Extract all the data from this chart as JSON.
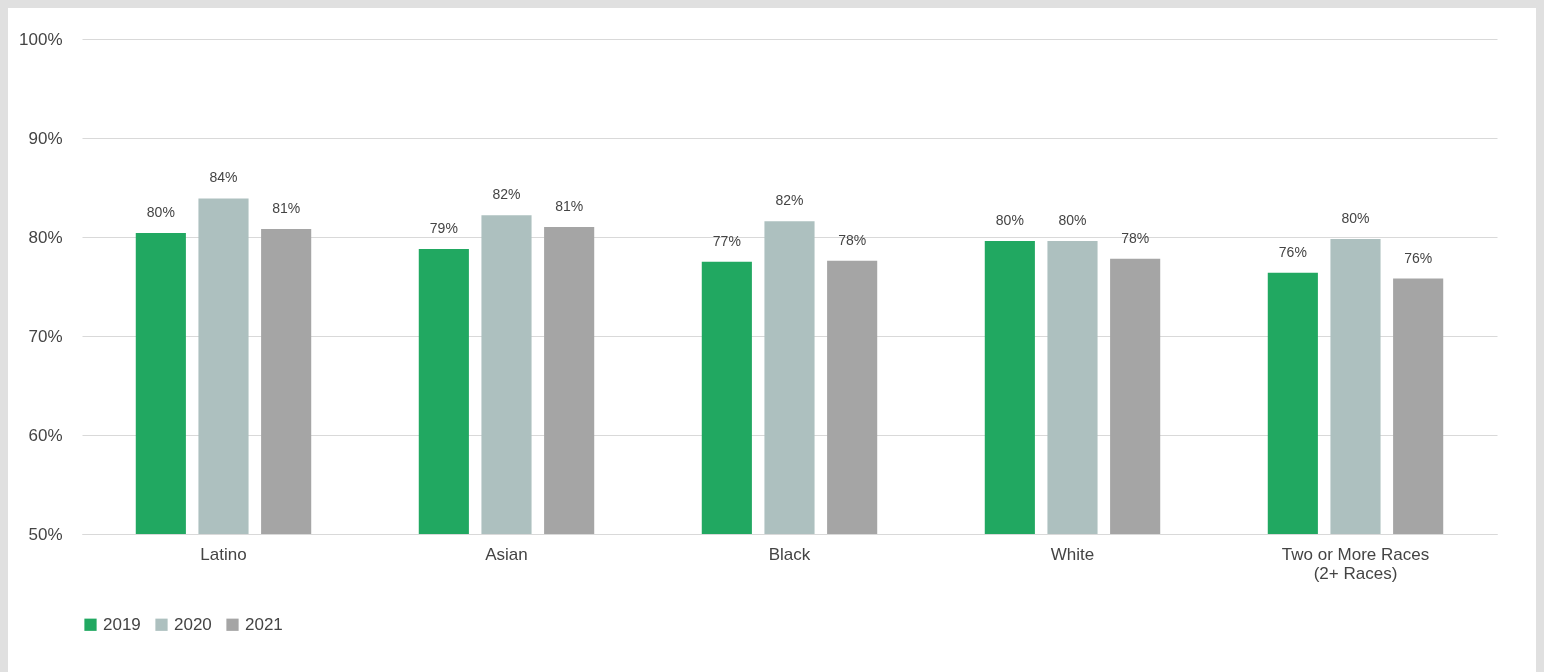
{
  "chart_data": {
    "type": "bar",
    "categories": [
      "Latino",
      "Asian",
      "Black",
      "White",
      "Two or More Races\n(2+ Races)"
    ],
    "series": [
      {
        "name": "2019",
        "color": "#21a861",
        "values": [
          80.4,
          78.8,
          77.5,
          79.6,
          76.4
        ],
        "value_labels": [
          "80%",
          "79%",
          "77%",
          "80%",
          "76%"
        ]
      },
      {
        "name": "2020",
        "color": "#adc0bf",
        "values": [
          83.9,
          82.2,
          81.6,
          79.6,
          79.8
        ],
        "value_labels": [
          "84%",
          "82%",
          "82%",
          "80%",
          "80%"
        ]
      },
      {
        "name": "2021",
        "color": "#a5a5a5",
        "values": [
          80.8,
          81.0,
          77.6,
          77.8,
          75.8
        ],
        "value_labels": [
          "81%",
          "81%",
          "78%",
          "78%",
          "76%"
        ]
      }
    ],
    "ylim": [
      50,
      100
    ],
    "yticks": [
      {
        "value": 50,
        "label": "50%"
      },
      {
        "value": 60,
        "label": "60%"
      },
      {
        "value": 70,
        "label": "70%"
      },
      {
        "value": 80,
        "label": "80%"
      },
      {
        "value": 90,
        "label": "90%"
      },
      {
        "value": 100,
        "label": "100%"
      }
    ],
    "grid": "y",
    "legend": "bottom"
  }
}
